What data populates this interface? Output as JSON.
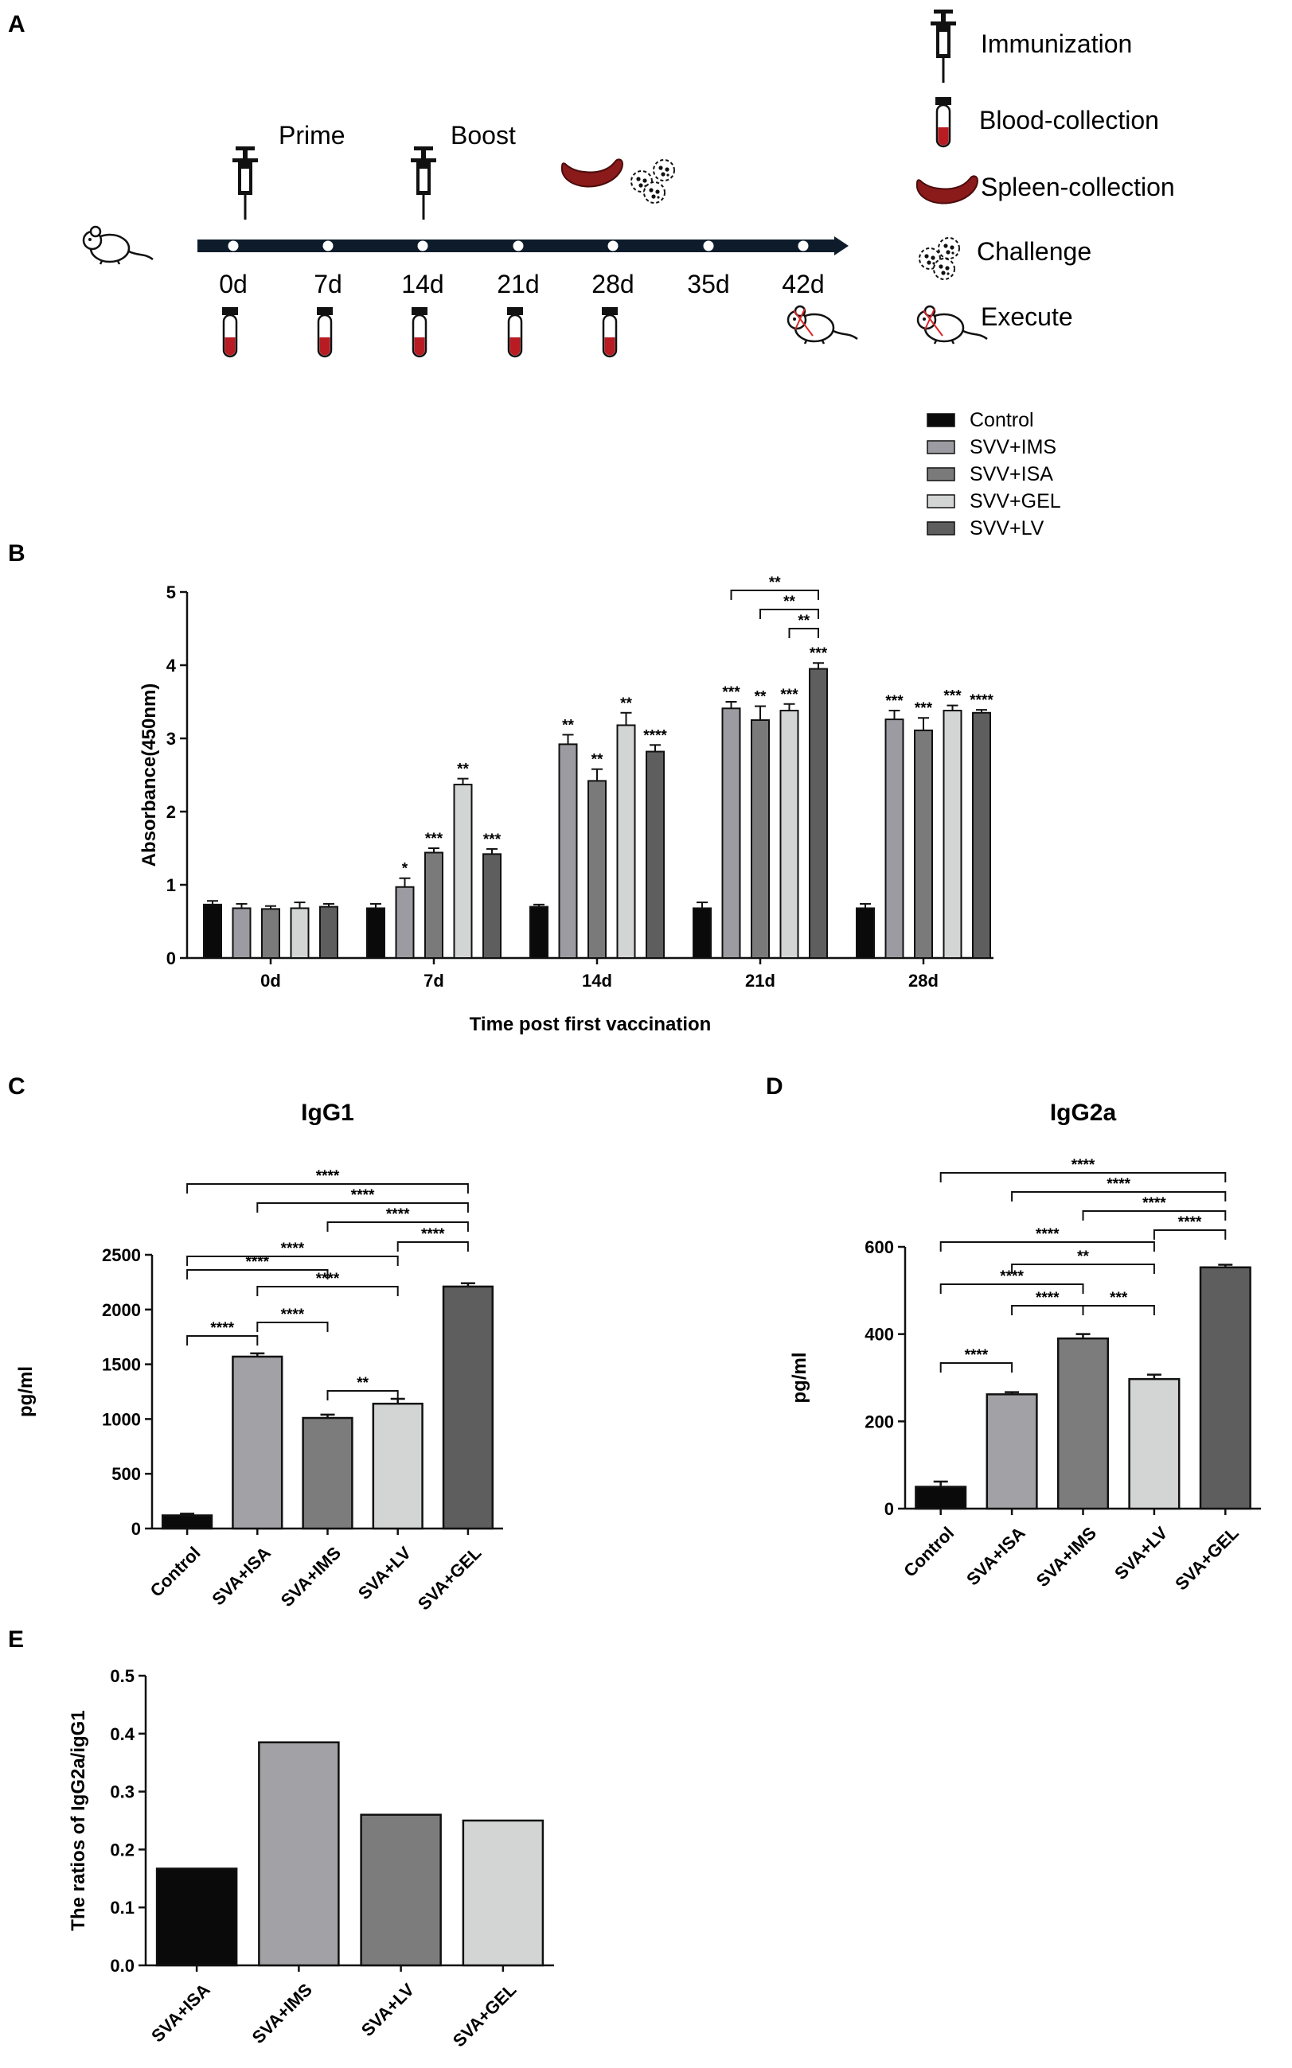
{
  "panel_labels": {
    "a": "A",
    "b": "B",
    "c": "C",
    "d": "D",
    "e": "E"
  },
  "timeline": {
    "prime_label": "Prime",
    "boost_label": "Boost",
    "days": [
      "0d",
      "7d",
      "14d",
      "21d",
      "28d",
      "35d",
      "42d"
    ],
    "legend": [
      "Immunization",
      "Blood-collection",
      "Spleen-collection",
      "Challenge",
      "Execute"
    ],
    "icons": [
      "mouse-icon",
      "syringe-icon",
      "blood-tube-icon",
      "spleen-icon",
      "virus-icon",
      "dead-mouse-icon"
    ],
    "colors": {
      "blood": "#b81c22",
      "spleen": "#8b1a1a",
      "line": "#0d1b2a"
    }
  },
  "chart_data": [
    {
      "id": "B",
      "type": "bar",
      "title": "",
      "xlabel": "Time post first vaccination",
      "ylabel": "Absorbance(450nm)",
      "ylim": [
        0,
        5
      ],
      "yticks": [
        0,
        1,
        2,
        3,
        4,
        5
      ],
      "categories": [
        "0d",
        "7d",
        "14d",
        "21d",
        "28d"
      ],
      "legend_position": "top-right",
      "series": [
        {
          "name": "Control",
          "color": "#0a0a0a",
          "values": [
            0.73,
            0.68,
            0.7,
            0.68,
            0.68
          ],
          "errors": [
            0.05,
            0.06,
            0.03,
            0.08,
            0.06
          ],
          "sig": [
            "",
            "",
            "",
            "",
            ""
          ]
        },
        {
          "name": "SVV+IMS",
          "color": "#9b9ba1",
          "values": [
            0.68,
            0.97,
            2.92,
            3.41,
            3.26
          ],
          "errors": [
            0.06,
            0.12,
            0.13,
            0.09,
            0.12
          ],
          "sig": [
            "",
            "*",
            "**",
            "***",
            "***"
          ]
        },
        {
          "name": "SVV+ISA",
          "color": "#7a7a7a",
          "values": [
            0.67,
            1.44,
            2.42,
            3.25,
            3.11
          ],
          "errors": [
            0.04,
            0.06,
            0.16,
            0.19,
            0.17
          ],
          "sig": [
            "",
            "***",
            "**",
            "**",
            "***"
          ]
        },
        {
          "name": "SVV+GEL",
          "color": "#d3d5d5",
          "values": [
            0.68,
            2.37,
            3.18,
            3.38,
            3.38
          ],
          "errors": [
            0.08,
            0.08,
            0.17,
            0.09,
            0.07
          ],
          "sig": [
            "",
            "**",
            "**",
            "***",
            "***"
          ]
        },
        {
          "name": "SVV+LV",
          "color": "#5e5e5e",
          "values": [
            0.7,
            1.42,
            2.82,
            3.95,
            3.35
          ],
          "errors": [
            0.04,
            0.07,
            0.09,
            0.08,
            0.04
          ],
          "sig": [
            "",
            "***",
            "****",
            "***",
            "****"
          ]
        }
      ],
      "comparisons": [
        {
          "group": "21d",
          "from": 1,
          "to": 4,
          "label": "**"
        },
        {
          "group": "21d",
          "from": 2,
          "to": 4,
          "label": "**"
        },
        {
          "group": "21d",
          "from": 3,
          "to": 4,
          "label": "**"
        }
      ]
    },
    {
      "id": "C",
      "type": "bar",
      "title": "IgG1",
      "xlabel": "",
      "ylabel": "pg/ml",
      "ylim": [
        0,
        2500
      ],
      "yticks": [
        0,
        500,
        1000,
        1500,
        2000,
        2500
      ],
      "categories": [
        "Control",
        "SVA+ISA",
        "SVA+IMS",
        "SVA+LV",
        "SVA+GEL"
      ],
      "colors": [
        "#0a0a0a",
        "#a2a2a6",
        "#7c7c7c",
        "#d3d5d5",
        "#5e5e5e"
      ],
      "values": [
        120,
        1570,
        1010,
        1140,
        2210
      ],
      "errors": [
        15,
        30,
        30,
        45,
        30
      ],
      "comparisons": [
        {
          "from": 0,
          "to": 1,
          "label": "****"
        },
        {
          "from": 1,
          "to": 2,
          "label": "****"
        },
        {
          "from": 2,
          "to": 3,
          "label": "**"
        },
        {
          "from": 0,
          "to": 2,
          "label": "****"
        },
        {
          "from": 1,
          "to": 3,
          "label": "****"
        },
        {
          "from": 0,
          "to": 3,
          "label": "****"
        },
        {
          "from": 3,
          "to": 4,
          "label": "****"
        },
        {
          "from": 2,
          "to": 4,
          "label": "****"
        },
        {
          "from": 1,
          "to": 4,
          "label": "****"
        },
        {
          "from": 0,
          "to": 4,
          "label": "****"
        }
      ]
    },
    {
      "id": "D",
      "type": "bar",
      "title": "IgG2a",
      "xlabel": "",
      "ylabel": "pg/ml",
      "ylim": [
        0,
        600
      ],
      "yticks": [
        0,
        200,
        400,
        600
      ],
      "categories": [
        "Control",
        "SVA+ISA",
        "SVA+IMS",
        "SVA+LV",
        "SVA+GEL"
      ],
      "colors": [
        "#0a0a0a",
        "#a2a2a6",
        "#7c7c7c",
        "#d3d5d5",
        "#5e5e5e"
      ],
      "values": [
        50,
        262,
        390,
        297,
        553
      ],
      "errors": [
        12,
        5,
        10,
        10,
        6
      ],
      "comparisons": [
        {
          "from": 0,
          "to": 1,
          "label": "****"
        },
        {
          "from": 1,
          "to": 2,
          "label": "****"
        },
        {
          "from": 2,
          "to": 3,
          "label": "***"
        },
        {
          "from": 0,
          "to": 2,
          "label": "****"
        },
        {
          "from": 1,
          "to": 3,
          "label": "**"
        },
        {
          "from": 0,
          "to": 3,
          "label": "****"
        },
        {
          "from": 3,
          "to": 4,
          "label": "****"
        },
        {
          "from": 2,
          "to": 4,
          "label": "****"
        },
        {
          "from": 1,
          "to": 4,
          "label": "****"
        },
        {
          "from": 0,
          "to": 4,
          "label": "****"
        }
      ]
    },
    {
      "id": "E",
      "type": "bar",
      "title": "",
      "xlabel": "",
      "ylabel": "The ratios of IgG2a/igG1",
      "ylim": [
        0,
        0.5
      ],
      "yticks": [
        0.0,
        0.1,
        0.2,
        0.3,
        0.4,
        0.5
      ],
      "categories": [
        "SVA+ISA",
        "SVA+IMS",
        "SVA+LV",
        "SVA+GEL"
      ],
      "colors": [
        "#0a0a0a",
        "#a2a2a6",
        "#7c7c7c",
        "#d3d5d5"
      ],
      "values": [
        0.167,
        0.385,
        0.26,
        0.25
      ]
    }
  ]
}
